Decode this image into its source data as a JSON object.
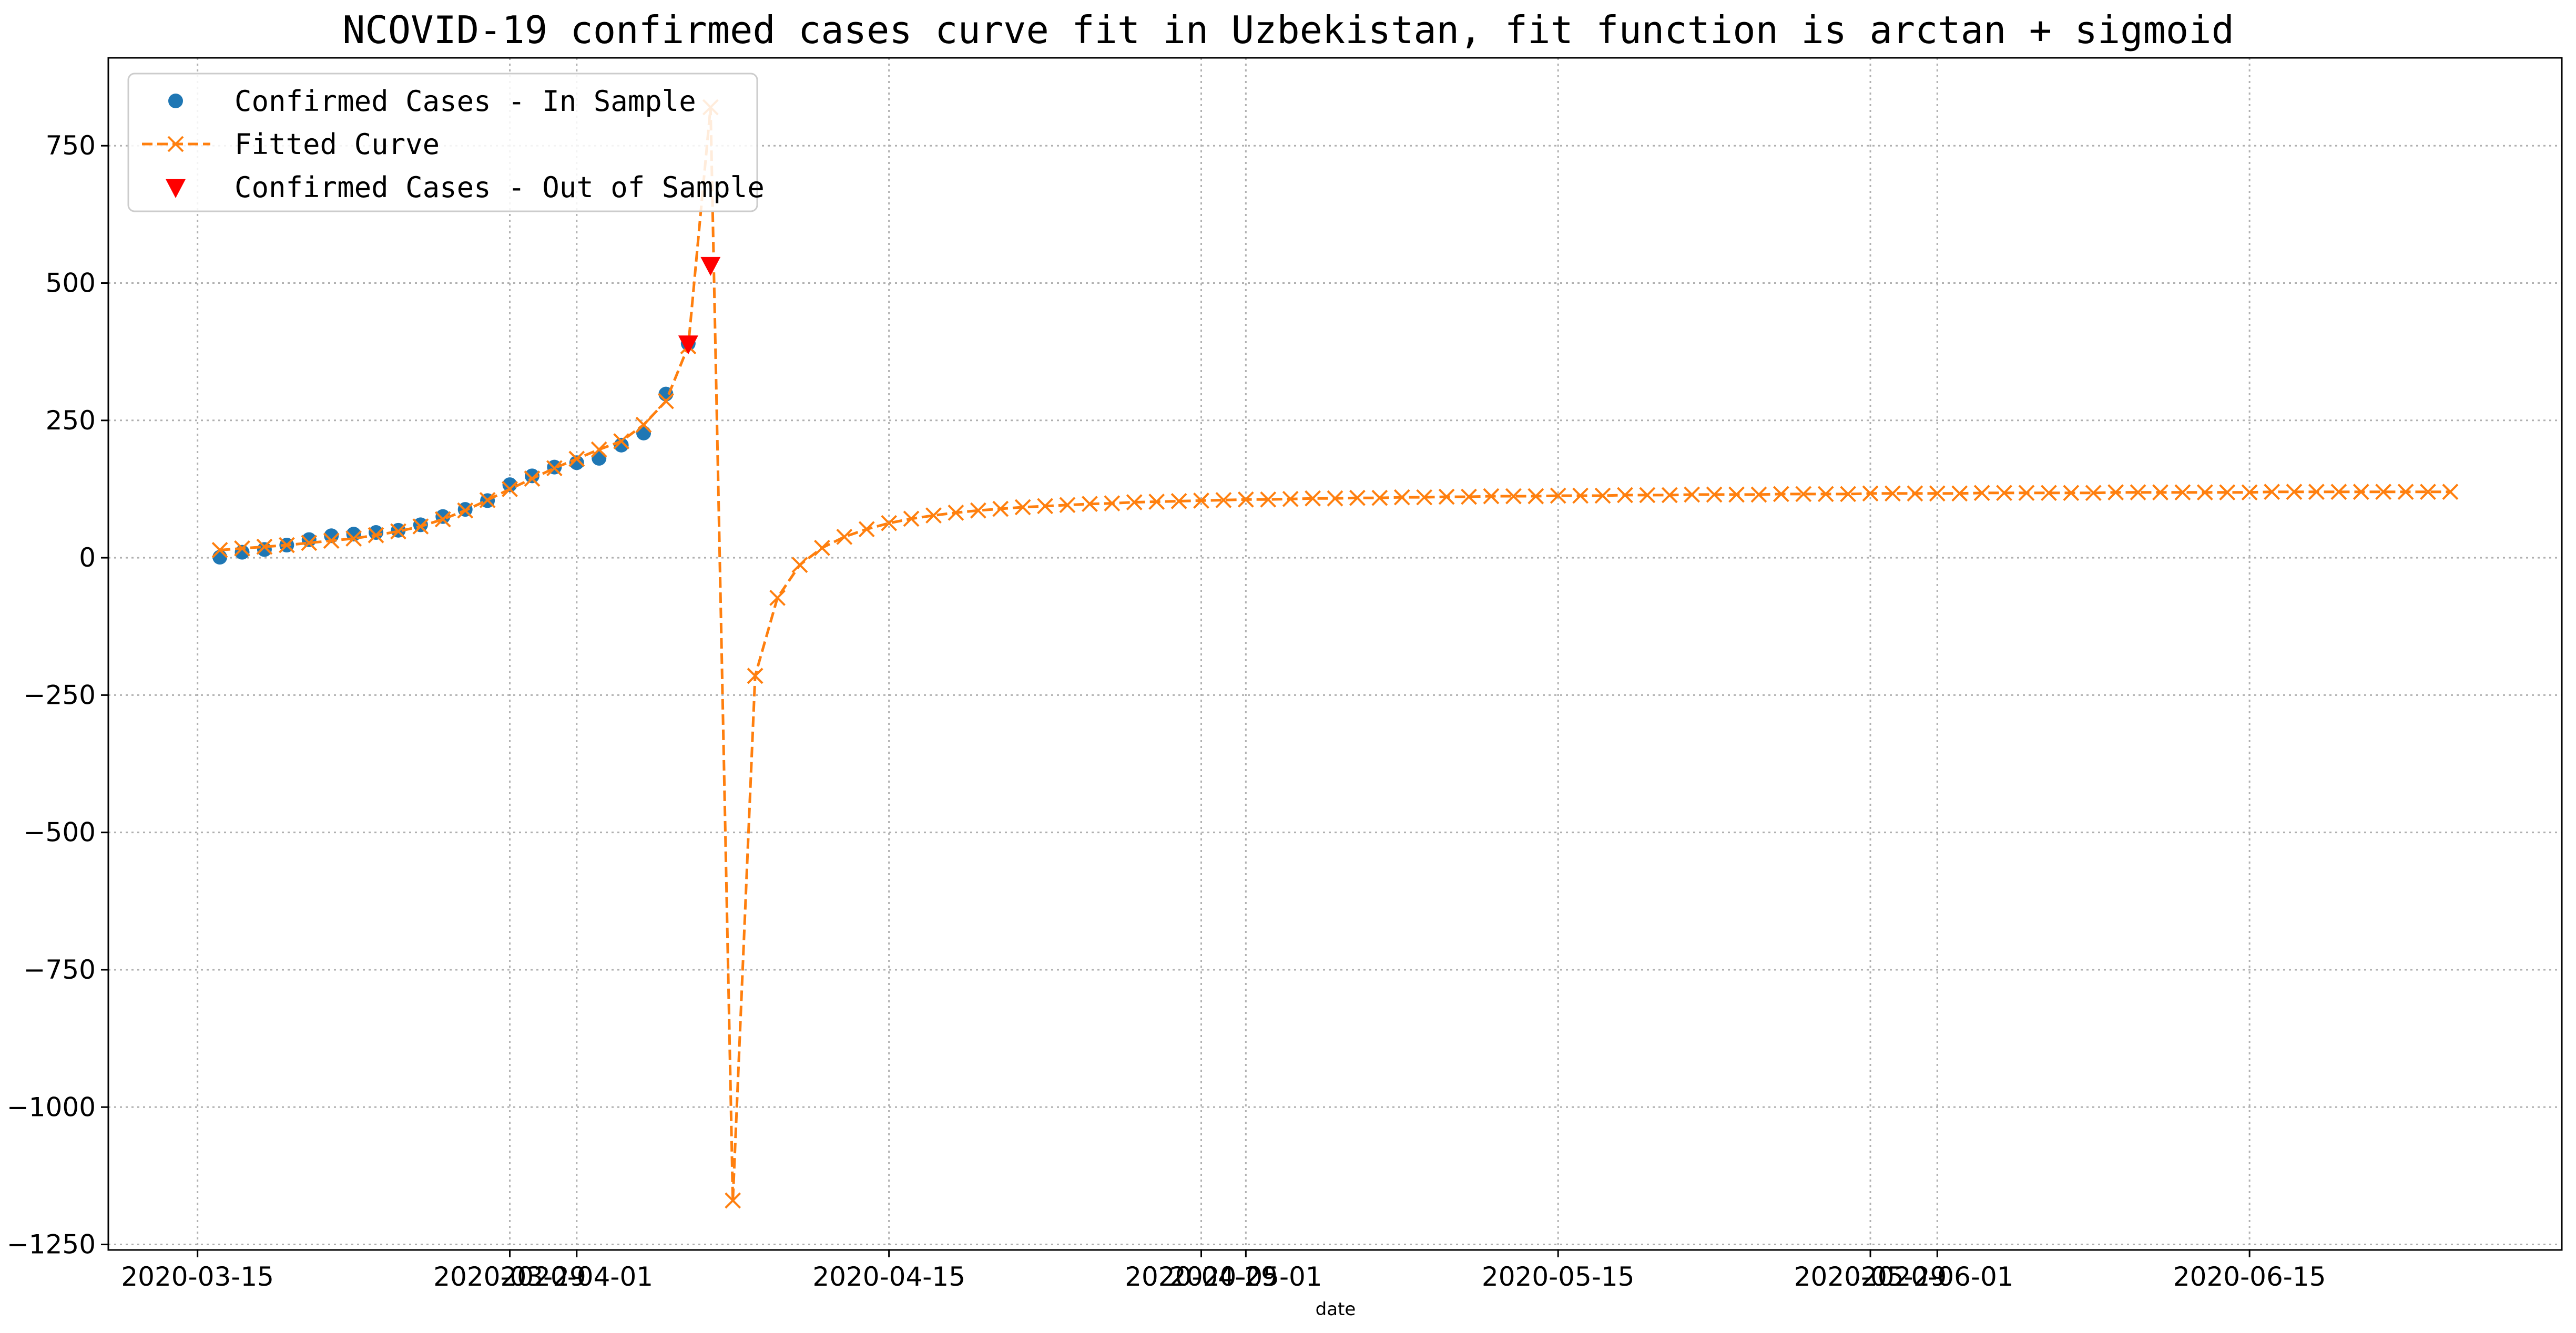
{
  "chart_data": {
    "type": "line",
    "title": "NCOVID-19 confirmed cases curve fit in Uzbekistan, fit function is arctan + sigmoid",
    "xlabel": "date",
    "ylabel": "",
    "grid": true,
    "legend_position": "top-left",
    "xlim": [
      "2020-03-11",
      "2020-06-29"
    ],
    "ylim": [
      -1260,
      910
    ],
    "x_ticks": [
      {
        "date": "2020-03-15",
        "label": "2020-03-15"
      },
      {
        "date": "2020-03-29",
        "label": "2020-03-29"
      },
      {
        "date": "2020-04-01",
        "label": "2020-04-01"
      },
      {
        "date": "2020-04-15",
        "label": "2020-04-15"
      },
      {
        "date": "2020-04-29",
        "label": "2020-04-29"
      },
      {
        "date": "2020-05-01",
        "label": "2020-05-01"
      },
      {
        "date": "2020-05-15",
        "label": "2020-05-15"
      },
      {
        "date": "2020-05-29",
        "label": "2020-05-29"
      },
      {
        "date": "2020-06-01",
        "label": "2020-06-01"
      },
      {
        "date": "2020-06-15",
        "label": "2020-06-15"
      }
    ],
    "y_ticks": [
      {
        "value": 750,
        "label": "750"
      },
      {
        "value": 500,
        "label": "500"
      },
      {
        "value": 250,
        "label": "250"
      },
      {
        "value": 0,
        "label": "0"
      },
      {
        "value": -250,
        "label": "−250"
      },
      {
        "value": -500,
        "label": "−500"
      },
      {
        "value": -750,
        "label": "−750"
      },
      {
        "value": -1000,
        "label": "−1000"
      },
      {
        "value": -1250,
        "label": "−1250"
      }
    ],
    "series": [
      {
        "name": "Confirmed Cases - In Sample",
        "style": "marker",
        "color": "#1f77b4",
        "start": "2020-03-16",
        "values": [
          1,
          10,
          15,
          23,
          33,
          40,
          43,
          46,
          50,
          60,
          75,
          88,
          104,
          133,
          149,
          165,
          173,
          181,
          205,
          227,
          298,
          390
        ]
      },
      {
        "name": "Fitted Curve",
        "style": "dashed-line-x",
        "color": "#ff7f0e",
        "start": "2020-03-16",
        "values": [
          14,
          17,
          20,
          23,
          27,
          31,
          35,
          41,
          48,
          57,
          70,
          86,
          105,
          125,
          144,
          163,
          180,
          197,
          212,
          242,
          285,
          385,
          820,
          -1170,
          -215,
          -73,
          -13,
          18,
          38,
          52,
          63,
          71,
          77,
          82,
          86,
          89,
          92,
          94,
          96,
          98,
          99,
          101,
          102,
          103,
          104,
          105,
          106,
          106,
          107,
          108,
          108,
          109,
          109,
          110,
          110,
          111,
          111,
          112,
          112,
          112,
          113,
          113,
          113,
          114,
          114,
          114,
          115,
          115,
          115,
          115,
          116,
          116,
          116,
          116,
          117,
          117,
          117,
          117,
          117,
          118,
          118,
          118,
          118,
          118,
          118,
          119,
          119,
          119,
          119,
          119,
          119,
          119,
          120,
          120,
          120,
          120,
          120,
          120,
          120,
          120,
          120
        ]
      },
      {
        "name": "Confirmed Cases - Out of Sample",
        "style": "triangle-down",
        "color": "#ff0000",
        "points": [
          {
            "date": "2020-04-06",
            "value": 390
          },
          {
            "date": "2020-04-07",
            "value": 533
          }
        ]
      }
    ]
  }
}
